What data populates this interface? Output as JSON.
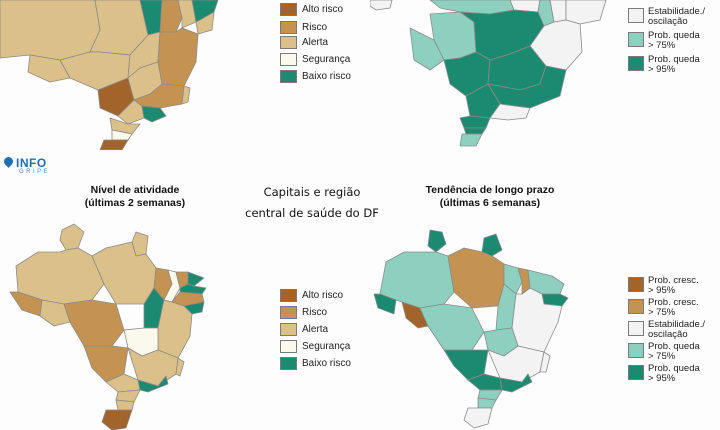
{
  "colors": {
    "alto_risco": "#a2642a",
    "risco": "#c49352",
    "alerta": "#dcc08a",
    "seguranca": "#fbf9ec",
    "baixo_risco": "#1b8a70",
    "prob_cresc_95": "#a2642a",
    "prob_cresc_75": "#c49352",
    "estabilidade": "#f3f3f3",
    "prob_queda_75": "#8dd0c0",
    "prob_queda_95": "#1b8a70"
  },
  "top": {
    "legend": [
      "Alto risco",
      "Risco",
      "Alerta",
      "Segurança",
      "Baixo risco"
    ],
    "legend_right": [
      {
        "lines": [
          "Estabilidade./",
          "oscilação"
        ]
      },
      {
        "lines": [
          "Prob. queda",
          "> 75%"
        ]
      },
      {
        "lines": [
          "Prob. queda",
          "> 95%"
        ]
      }
    ]
  },
  "logo": {
    "name": "INFO",
    "sub": "GRIPE",
    "icon": "location-pin-icon"
  },
  "bottom": {
    "left_title": [
      "Nível de atividade",
      "(últimas 2 semanas)"
    ],
    "center_title": [
      "Capitais e região",
      "central de saúde do DF"
    ],
    "right_title": [
      "Tendência de longo prazo",
      "(últimas 6 semanas)"
    ],
    "legend": [
      "Alto risco",
      "Risco",
      "Alerta",
      "Segurança",
      "Baixo risco"
    ],
    "legend_right": [
      {
        "lines": [
          "Prob. cresc.",
          "> 95%"
        ]
      },
      {
        "lines": [
          "Prob. cresc.",
          "> 75%"
        ]
      },
      {
        "lines": [
          "Estabilidade./",
          "oscilação"
        ]
      },
      {
        "lines": [
          "Prob. queda",
          "> 75%"
        ]
      },
      {
        "lines": [
          "Prob. queda",
          "> 95%"
        ]
      }
    ]
  }
}
